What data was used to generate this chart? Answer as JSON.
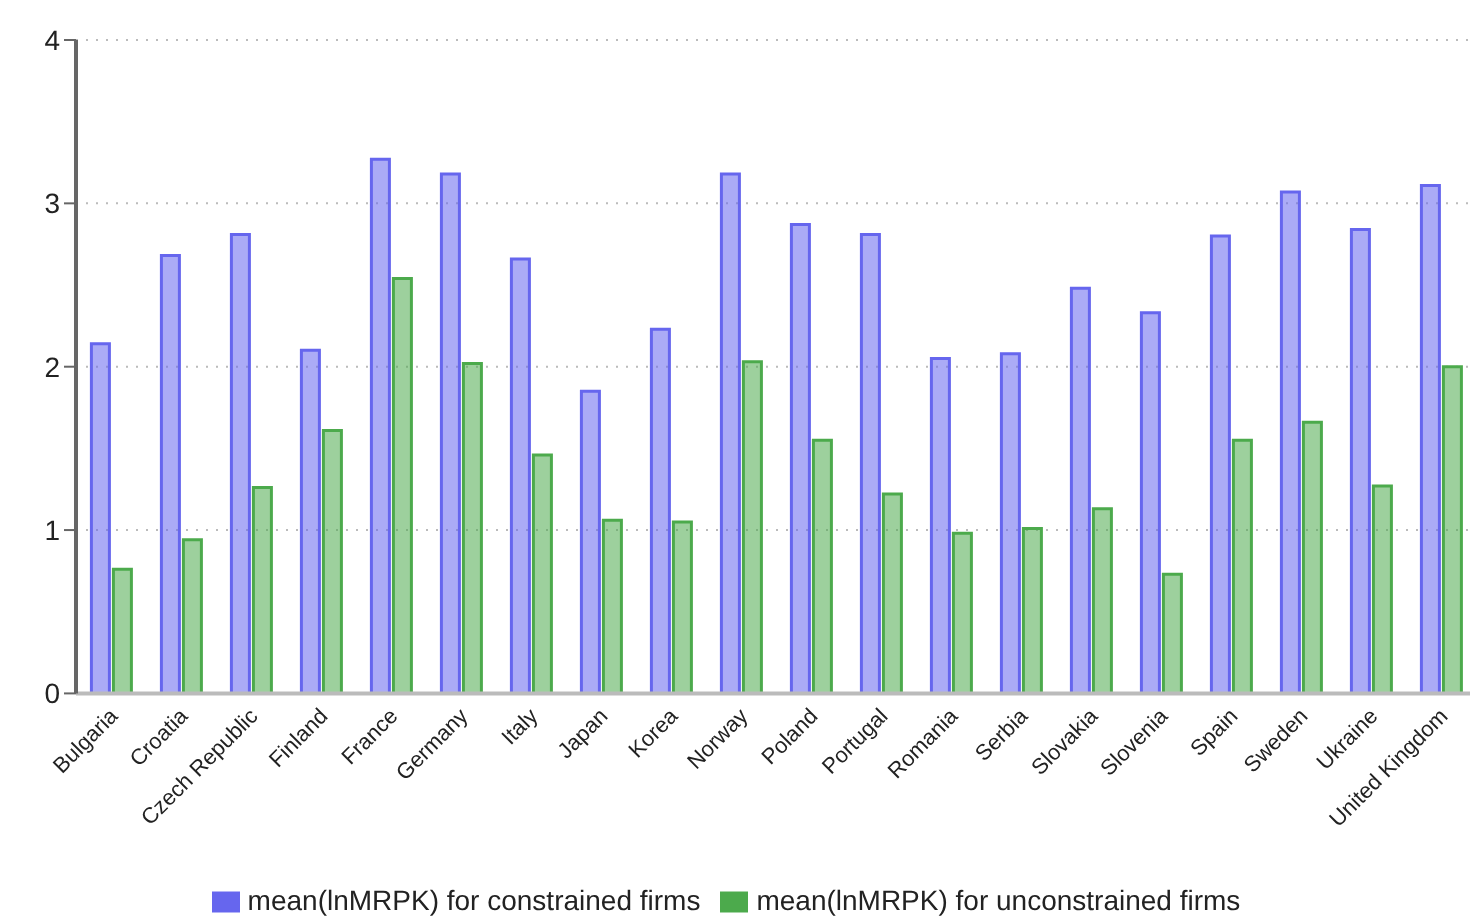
{
  "chart_data": {
    "type": "bar",
    "categories": [
      "Bulgaria",
      "Croatia",
      "Czech Republic",
      "Finland",
      "France",
      "Germany",
      "Italy",
      "Japan",
      "Korea",
      "Norway",
      "Poland",
      "Portugal",
      "Romania",
      "Serbia",
      "Slovakia",
      "Slovenia",
      "Spain",
      "Sweden",
      "Ukraine",
      "United Kingdom"
    ],
    "series": [
      {
        "name": "mean(lnMRPK) for constrained firms",
        "color": "#6666ee",
        "values": [
          2.14,
          2.68,
          2.81,
          2.1,
          3.27,
          3.18,
          2.66,
          1.85,
          2.23,
          3.18,
          2.87,
          2.81,
          2.05,
          2.08,
          2.48,
          2.33,
          2.8,
          3.07,
          2.84,
          3.11
        ]
      },
      {
        "name": "mean(lnMRPK) for unconstrained firms",
        "color": "#4caa4c",
        "values": [
          0.76,
          0.94,
          1.26,
          1.61,
          2.54,
          2.02,
          1.46,
          1.06,
          1.05,
          2.03,
          1.55,
          1.22,
          0.98,
          1.01,
          1.13,
          0.73,
          1.55,
          1.66,
          1.27,
          2.0
        ]
      }
    ],
    "ylim": [
      0,
      4
    ],
    "yticks": [
      0,
      1,
      2,
      3,
      4
    ],
    "grid": "y",
    "legend": "bottom"
  }
}
